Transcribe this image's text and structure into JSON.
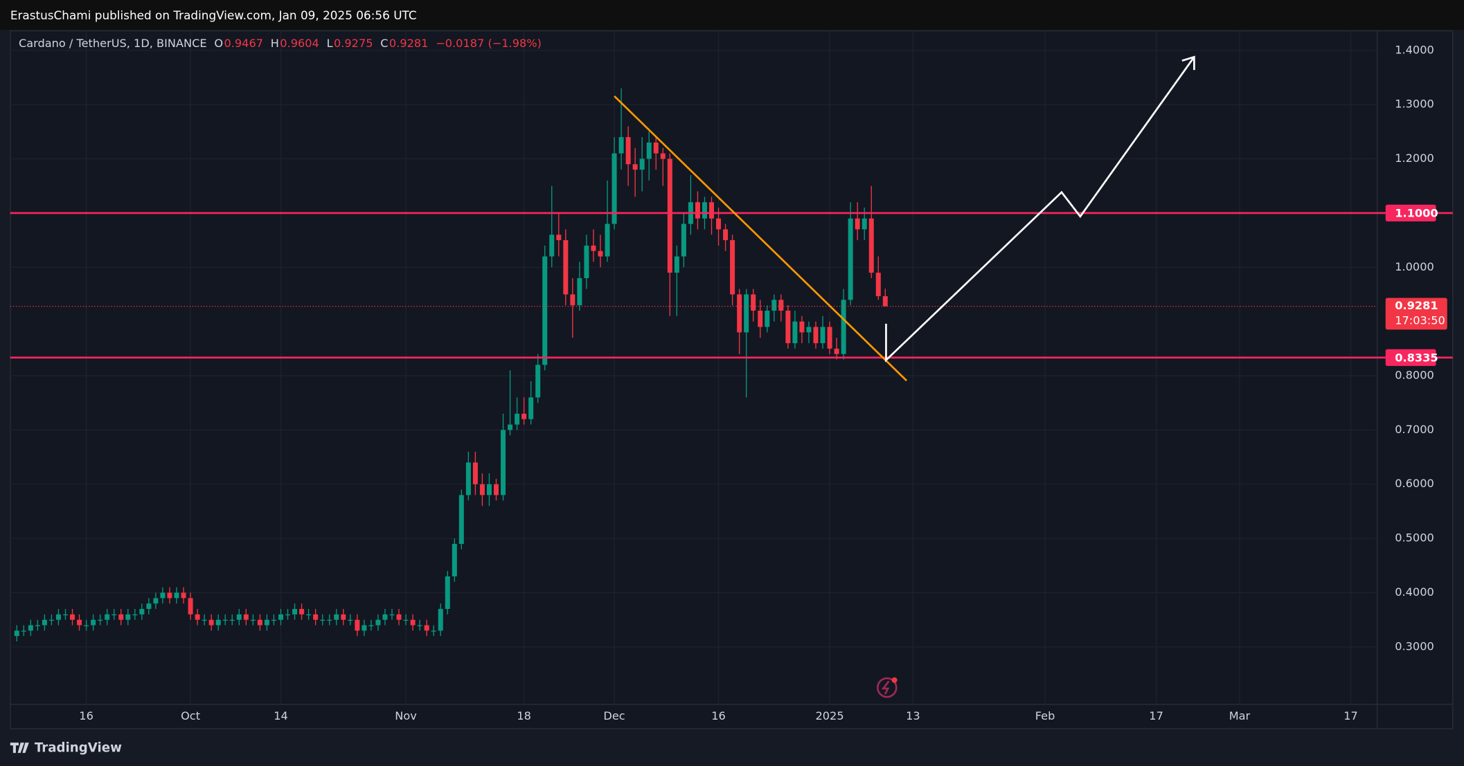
{
  "header": {
    "publisher": "ErastusChami published on TradingView.com, Jan 09, 2025 06:56 UTC",
    "brand": "TradingView"
  },
  "chart_data": {
    "type": "candlestick",
    "title": "Cardano / TetherUS, 1D, BINANCE",
    "ohlc_labels": [
      "O",
      "H",
      "L",
      "C"
    ],
    "change": "−0.0187 (−1.98%)",
    "countdown": "17:03:50",
    "up_color": "#089981",
    "down_color": "#f23645",
    "open": [
      0.32,
      0.33,
      0.33,
      0.34,
      0.34,
      0.35,
      0.35,
      0.36,
      0.36,
      0.35,
      0.34,
      0.34,
      0.35,
      0.35,
      0.36,
      0.36,
      0.35,
      0.36,
      0.36,
      0.37,
      0.38,
      0.39,
      0.4,
      0.39,
      0.4,
      0.39,
      0.36,
      0.35,
      0.35,
      0.34,
      0.35,
      0.35,
      0.35,
      0.36,
      0.35,
      0.35,
      0.34,
      0.35,
      0.35,
      0.36,
      0.36,
      0.37,
      0.36,
      0.36,
      0.35,
      0.35,
      0.35,
      0.36,
      0.35,
      0.35,
      0.33,
      0.34,
      0.34,
      0.35,
      0.36,
      0.36,
      0.35,
      0.35,
      0.34,
      0.34,
      0.33,
      0.33,
      0.37,
      0.43,
      0.49,
      0.58,
      0.64,
      0.6,
      0.58,
      0.6,
      0.58,
      0.7,
      0.71,
      0.73,
      0.72,
      0.76,
      0.82,
      1.02,
      1.06,
      1.05,
      0.95,
      0.93,
      0.98,
      1.04,
      1.03,
      1.02,
      1.08,
      1.21,
      1.24,
      1.19,
      1.18,
      1.2,
      1.23,
      1.21,
      1.2,
      0.99,
      1.02,
      1.08,
      1.12,
      1.09,
      1.12,
      1.09,
      1.07,
      1.05,
      0.95,
      0.88,
      0.95,
      0.92,
      0.89,
      0.92,
      0.94,
      0.92,
      0.86,
      0.9,
      0.88,
      0.89,
      0.86,
      0.89,
      0.85,
      0.84,
      0.94,
      1.09,
      1.07,
      1.09,
      0.99,
      0.9467
    ],
    "high": [
      0.34,
      0.34,
      0.35,
      0.35,
      0.36,
      0.36,
      0.37,
      0.37,
      0.37,
      0.36,
      0.35,
      0.36,
      0.36,
      0.37,
      0.37,
      0.37,
      0.37,
      0.37,
      0.38,
      0.39,
      0.4,
      0.41,
      0.41,
      0.41,
      0.41,
      0.4,
      0.37,
      0.36,
      0.36,
      0.36,
      0.36,
      0.36,
      0.37,
      0.37,
      0.36,
      0.36,
      0.36,
      0.36,
      0.37,
      0.37,
      0.38,
      0.38,
      0.37,
      0.37,
      0.36,
      0.36,
      0.37,
      0.37,
      0.36,
      0.36,
      0.35,
      0.35,
      0.36,
      0.37,
      0.37,
      0.37,
      0.36,
      0.36,
      0.35,
      0.35,
      0.34,
      0.38,
      0.44,
      0.5,
      0.59,
      0.66,
      0.66,
      0.62,
      0.62,
      0.61,
      0.73,
      0.81,
      0.76,
      0.76,
      0.79,
      0.84,
      1.04,
      1.15,
      1.1,
      1.07,
      0.98,
      1.01,
      1.06,
      1.07,
      1.06,
      1.16,
      1.24,
      1.33,
      1.26,
      1.22,
      1.24,
      1.25,
      1.24,
      1.22,
      1.21,
      1.04,
      1.1,
      1.17,
      1.14,
      1.13,
      1.13,
      1.11,
      1.08,
      1.06,
      0.96,
      0.96,
      0.96,
      0.94,
      0.93,
      0.95,
      0.95,
      0.93,
      0.92,
      0.91,
      0.9,
      0.9,
      0.91,
      0.9,
      0.87,
      0.96,
      1.12,
      1.12,
      1.11,
      1.15,
      1.02,
      0.9604
    ],
    "low": [
      0.31,
      0.32,
      0.32,
      0.33,
      0.33,
      0.34,
      0.34,
      0.35,
      0.34,
      0.33,
      0.33,
      0.33,
      0.34,
      0.34,
      0.35,
      0.34,
      0.34,
      0.35,
      0.35,
      0.36,
      0.37,
      0.38,
      0.38,
      0.38,
      0.38,
      0.35,
      0.34,
      0.34,
      0.33,
      0.33,
      0.34,
      0.34,
      0.34,
      0.34,
      0.34,
      0.33,
      0.33,
      0.34,
      0.34,
      0.35,
      0.35,
      0.35,
      0.35,
      0.34,
      0.34,
      0.34,
      0.34,
      0.34,
      0.34,
      0.32,
      0.32,
      0.33,
      0.33,
      0.34,
      0.35,
      0.34,
      0.34,
      0.33,
      0.33,
      0.32,
      0.32,
      0.32,
      0.36,
      0.42,
      0.48,
      0.57,
      0.58,
      0.56,
      0.56,
      0.57,
      0.57,
      0.69,
      0.7,
      0.71,
      0.71,
      0.75,
      0.81,
      1.0,
      1.02,
      0.93,
      0.87,
      0.92,
      0.96,
      1.01,
      1.0,
      1.01,
      1.07,
      1.18,
      1.15,
      1.13,
      1.14,
      1.16,
      1.18,
      1.15,
      0.91,
      0.91,
      1.0,
      1.06,
      1.07,
      1.07,
      1.06,
      1.04,
      1.03,
      0.93,
      0.84,
      0.76,
      0.9,
      0.87,
      0.88,
      0.9,
      0.9,
      0.85,
      0.85,
      0.86,
      0.86,
      0.85,
      0.85,
      0.84,
      0.83,
      0.83,
      0.93,
      1.05,
      1.05,
      0.98,
      0.94,
      0.9275
    ],
    "close": [
      0.33,
      0.33,
      0.34,
      0.34,
      0.35,
      0.35,
      0.36,
      0.36,
      0.35,
      0.34,
      0.34,
      0.35,
      0.35,
      0.36,
      0.36,
      0.35,
      0.36,
      0.36,
      0.37,
      0.38,
      0.39,
      0.4,
      0.39,
      0.4,
      0.39,
      0.36,
      0.35,
      0.35,
      0.34,
      0.35,
      0.35,
      0.35,
      0.36,
      0.35,
      0.35,
      0.34,
      0.35,
      0.35,
      0.36,
      0.36,
      0.37,
      0.36,
      0.36,
      0.35,
      0.35,
      0.35,
      0.36,
      0.35,
      0.35,
      0.33,
      0.34,
      0.34,
      0.35,
      0.36,
      0.36,
      0.35,
      0.35,
      0.34,
      0.34,
      0.33,
      0.33,
      0.37,
      0.43,
      0.49,
      0.58,
      0.64,
      0.6,
      0.58,
      0.6,
      0.58,
      0.7,
      0.71,
      0.73,
      0.72,
      0.76,
      0.82,
      1.02,
      1.06,
      1.05,
      0.95,
      0.93,
      0.98,
      1.04,
      1.03,
      1.02,
      1.08,
      1.21,
      1.24,
      1.19,
      1.18,
      1.2,
      1.23,
      1.21,
      1.2,
      0.99,
      1.02,
      1.08,
      1.12,
      1.09,
      1.12,
      1.09,
      1.07,
      1.05,
      0.95,
      0.88,
      0.95,
      0.92,
      0.89,
      0.92,
      0.94,
      0.92,
      0.86,
      0.9,
      0.88,
      0.89,
      0.86,
      0.89,
      0.85,
      0.84,
      0.94,
      1.09,
      1.07,
      1.09,
      0.99,
      0.9467,
      0.9281
    ],
    "xlim": [
      -0.94,
      195.8
    ],
    "xticks": [
      {
        "value": 10,
        "label": "16"
      },
      {
        "value": 25,
        "label": "Oct"
      },
      {
        "value": 38,
        "label": "14"
      },
      {
        "value": 56,
        "label": "Nov"
      },
      {
        "value": 73,
        "label": "18"
      },
      {
        "value": 86,
        "label": "Dec"
      },
      {
        "value": 101,
        "label": "16"
      },
      {
        "value": 117,
        "label": "2025"
      },
      {
        "value": 129,
        "label": "13"
      },
      {
        "value": 148,
        "label": "Feb"
      },
      {
        "value": 164,
        "label": "17"
      },
      {
        "value": 176,
        "label": "Mar"
      },
      {
        "value": 192,
        "label": "17"
      }
    ],
    "ylim": [
      0.194,
      1.436
    ],
    "yticks": [
      {
        "value": 0.3,
        "label": "0.3000"
      },
      {
        "value": 0.4,
        "label": "0.4000"
      },
      {
        "value": 0.5,
        "label": "0.5000"
      },
      {
        "value": 0.6,
        "label": "0.6000"
      },
      {
        "value": 0.7,
        "label": "0.7000"
      },
      {
        "value": 0.8,
        "label": "0.8000"
      },
      {
        "value": 1.0,
        "label": "1.0000"
      },
      {
        "value": 1.2,
        "label": "1.2000"
      },
      {
        "value": 1.3,
        "label": "1.3000"
      },
      {
        "value": 1.4,
        "label": "1.4000"
      }
    ],
    "grid": true,
    "hlines": [
      {
        "value": 1.1,
        "label": "1.1000",
        "color": "#f7265e"
      },
      {
        "value": 0.8335,
        "label": "0.8335",
        "color": "#f7265e"
      }
    ]
  }
}
